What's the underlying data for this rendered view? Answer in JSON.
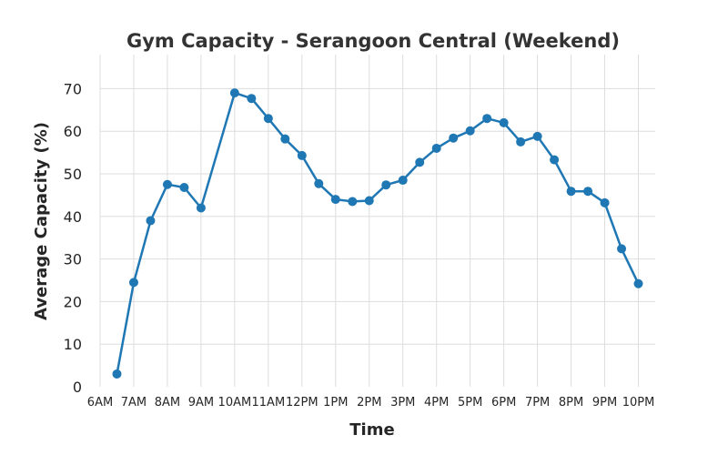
{
  "chart_data": {
    "type": "line",
    "title": "Gym Capacity - Serangoon Central (Weekend)",
    "xlabel": "Time",
    "ylabel": "Average Capacity (%)",
    "x_tick_labels": [
      "6AM",
      "7AM",
      "8AM",
      "9AM",
      "10AM",
      "11AM",
      "12PM",
      "1PM",
      "2PM",
      "3PM",
      "4PM",
      "5PM",
      "6PM",
      "7PM",
      "8PM",
      "9PM",
      "10PM"
    ],
    "y_ticks": [
      0,
      10,
      20,
      30,
      40,
      50,
      60,
      70
    ],
    "xlim": [
      6,
      22.5
    ],
    "ylim": [
      0,
      78
    ],
    "grid": true,
    "legend": "none",
    "color": "#1f77b4",
    "series": [
      {
        "x": [
          6.5,
          7,
          7.5,
          8,
          8.5,
          9,
          10,
          10.5,
          11,
          11.5,
          12,
          12.5,
          13,
          13.5,
          14,
          14.5,
          15,
          15.5,
          16,
          16.5,
          17,
          17.5,
          18,
          18.5,
          19,
          19.5,
          20,
          20.5,
          21,
          21.5,
          22
        ],
        "y": [
          3,
          24.5,
          39,
          47.5,
          46.8,
          42,
          69,
          67.7,
          63,
          58.2,
          54.3,
          47.7,
          44,
          43.5,
          43.7,
          47.4,
          48.5,
          52.7,
          56,
          58.4,
          60.1,
          63,
          62,
          57.5,
          58.8,
          53.3,
          45.9,
          45.9,
          43.2,
          32.4,
          24.2
        ]
      }
    ]
  }
}
